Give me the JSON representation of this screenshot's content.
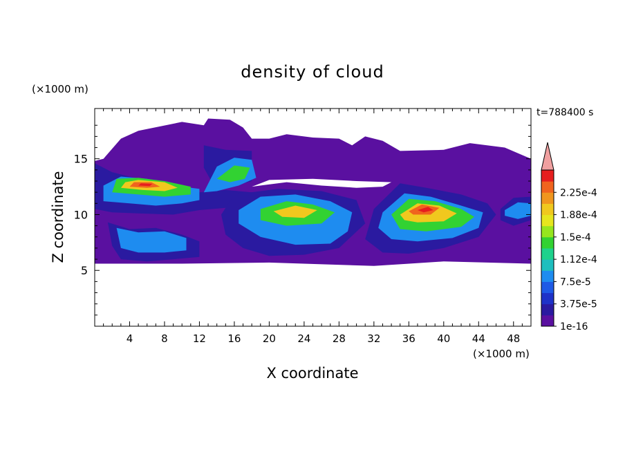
{
  "chart_data": {
    "type": "heatmap",
    "title": "density of cloud",
    "time_label": "t=788400 s",
    "xlabel": "X coordinate",
    "ylabel": "Z coordinate",
    "x_unit": "(×1000 m)",
    "y_unit": "(×1000 m)",
    "xlim": [
      0,
      50
    ],
    "ylim": [
      0,
      19.5
    ],
    "xticks": [
      4,
      8,
      12,
      16,
      20,
      24,
      28,
      32,
      36,
      40,
      44,
      48
    ],
    "yticks": [
      5,
      10,
      15
    ],
    "colorbar": {
      "levels": [
        "1e-16",
        "3.75e-5",
        "7.5e-5",
        "1.12e-4",
        "1.5e-4",
        "1.88e-4",
        "2.25e-4"
      ],
      "colors": [
        "#5a10a0",
        "#2a1aa0",
        "#1e32c8",
        "#1e5ae6",
        "#1e8cf0",
        "#1ebebe",
        "#1ed28c",
        "#32d232",
        "#96e61e",
        "#e6e61e",
        "#f0c81e",
        "#f0961e",
        "#f0641e",
        "#e61e1e"
      ],
      "extend_color": "#f0a0a0",
      "extend": "max"
    },
    "regions": [
      {
        "level": 1,
        "polygon": [
          [
            0,
            10.5
          ],
          [
            2,
            10.2
          ],
          [
            5,
            10.1
          ],
          [
            9,
            10.0
          ],
          [
            12,
            10.4
          ],
          [
            15,
            10.6
          ],
          [
            18,
            10.7
          ],
          [
            18,
            12.0
          ],
          [
            15,
            12.2
          ],
          [
            12,
            12.0
          ],
          [
            8,
            12.5
          ],
          [
            5,
            13.2
          ],
          [
            2,
            13.8
          ],
          [
            0,
            14.6
          ]
        ]
      },
      {
        "level": 1,
        "polygon": [
          [
            1.5,
            9.3
          ],
          [
            4,
            8.7
          ],
          [
            7,
            8.8
          ],
          [
            10,
            8.2
          ],
          [
            12,
            7.6
          ],
          [
            12,
            6.2
          ],
          [
            9,
            6.0
          ],
          [
            6,
            5.8
          ],
          [
            3,
            6.0
          ],
          [
            2,
            7.2
          ]
        ]
      },
      {
        "level": 1,
        "polygon": [
          [
            12.5,
            16.2
          ],
          [
            15,
            15.8
          ],
          [
            18,
            15.7
          ],
          [
            18,
            13.0
          ],
          [
            16,
            12.6
          ],
          [
            13.5,
            12.8
          ],
          [
            12.5,
            14.2
          ]
        ]
      },
      {
        "level": 1,
        "polygon": [
          [
            16,
            11.8
          ],
          [
            21,
            12.3
          ],
          [
            26,
            12.1
          ],
          [
            30,
            11.3
          ],
          [
            31,
            9.2
          ],
          [
            28,
            7.0
          ],
          [
            24,
            6.4
          ],
          [
            20,
            6.3
          ],
          [
            17,
            7.0
          ],
          [
            15,
            8.2
          ],
          [
            14.5,
            10.0
          ]
        ]
      },
      {
        "level": 1,
        "polygon": [
          [
            32,
            10.5
          ],
          [
            35,
            12.8
          ],
          [
            38,
            12.4
          ],
          [
            42,
            11.8
          ],
          [
            45,
            11.0
          ],
          [
            46,
            10.0
          ],
          [
            44,
            8.0
          ],
          [
            40,
            7.0
          ],
          [
            36,
            6.5
          ],
          [
            33,
            6.6
          ],
          [
            31,
            7.8
          ]
        ]
      },
      {
        "level": 1,
        "polygon": [
          [
            46.5,
            10.5
          ],
          [
            48,
            11.5
          ],
          [
            50,
            11.6
          ],
          [
            50,
            9.5
          ],
          [
            48,
            9.0
          ],
          [
            46.5,
            9.5
          ]
        ]
      },
      {
        "level": 4,
        "polygon": [
          [
            1,
            11.2
          ],
          [
            4,
            11.0
          ],
          [
            7,
            10.8
          ],
          [
            10,
            11.0
          ],
          [
            12,
            11.3
          ],
          [
            12,
            12.3
          ],
          [
            9,
            12.6
          ],
          [
            6,
            13.2
          ],
          [
            3,
            13.4
          ],
          [
            1,
            12.6
          ]
        ]
      },
      {
        "level": 4,
        "polygon": [
          [
            2.5,
            8.8
          ],
          [
            5,
            8.4
          ],
          [
            8,
            8.5
          ],
          [
            10.5,
            7.9
          ],
          [
            10.5,
            6.8
          ],
          [
            8,
            6.6
          ],
          [
            5,
            6.6
          ],
          [
            3,
            7.0
          ]
        ]
      },
      {
        "level": 4,
        "polygon": [
          [
            12.5,
            12.0
          ],
          [
            14,
            14.3
          ],
          [
            16,
            15.1
          ],
          [
            18,
            14.9
          ],
          [
            18.5,
            13.3
          ],
          [
            16.5,
            12.6
          ],
          [
            14,
            12.1
          ]
        ]
      },
      {
        "level": 4,
        "polygon": [
          [
            16.5,
            10.4
          ],
          [
            19,
            11.6
          ],
          [
            23,
            11.8
          ],
          [
            27,
            11.2
          ],
          [
            29.5,
            10.2
          ],
          [
            29,
            8.5
          ],
          [
            27,
            7.4
          ],
          [
            23,
            7.3
          ],
          [
            19,
            8.0
          ],
          [
            16.5,
            9.2
          ]
        ]
      },
      {
        "level": 4,
        "polygon": [
          [
            33,
            10.2
          ],
          [
            35.5,
            11.9
          ],
          [
            38.5,
            11.6
          ],
          [
            42,
            10.8
          ],
          [
            44.5,
            10.2
          ],
          [
            44,
            8.8
          ],
          [
            41,
            7.9
          ],
          [
            37,
            7.6
          ],
          [
            34,
            7.8
          ],
          [
            32.5,
            8.8
          ]
        ]
      },
      {
        "level": 4,
        "polygon": [
          [
            47,
            10.4
          ],
          [
            48.5,
            11.1
          ],
          [
            50,
            11.0
          ],
          [
            50,
            9.9
          ],
          [
            48.5,
            9.6
          ],
          [
            47,
            9.9
          ]
        ]
      },
      {
        "level": 7,
        "polygon": [
          [
            2,
            12.0
          ],
          [
            5,
            11.8
          ],
          [
            8,
            11.6
          ],
          [
            11,
            11.8
          ],
          [
            11,
            12.5
          ],
          [
            8,
            13.0
          ],
          [
            5,
            13.3
          ],
          [
            2.5,
            13.2
          ]
        ]
      },
      {
        "level": 7,
        "polygon": [
          [
            19,
            10.5
          ],
          [
            22,
            11.2
          ],
          [
            25,
            10.9
          ],
          [
            27.5,
            10.2
          ],
          [
            26,
            9.2
          ],
          [
            22,
            9.0
          ],
          [
            19,
            9.5
          ]
        ]
      },
      {
        "level": 7,
        "polygon": [
          [
            34,
            10.0
          ],
          [
            36,
            11.4
          ],
          [
            39,
            11.2
          ],
          [
            42,
            10.5
          ],
          [
            43.5,
            9.8
          ],
          [
            42,
            8.9
          ],
          [
            38,
            8.5
          ],
          [
            35,
            8.7
          ]
        ]
      },
      {
        "level": 7,
        "polygon": [
          [
            14,
            13.2
          ],
          [
            16,
            14.4
          ],
          [
            17.8,
            14.2
          ],
          [
            17.2,
            13.2
          ],
          [
            15.5,
            12.9
          ]
        ]
      },
      {
        "level": 10,
        "polygon": [
          [
            3,
            12.4
          ],
          [
            5.5,
            12.2
          ],
          [
            8,
            12.1
          ],
          [
            9.5,
            12.4
          ],
          [
            8,
            12.9
          ],
          [
            5,
            13.1
          ],
          [
            3.5,
            12.9
          ]
        ]
      },
      {
        "level": 10,
        "polygon": [
          [
            20.5,
            10.3
          ],
          [
            23,
            10.8
          ],
          [
            25.5,
            10.4
          ],
          [
            24,
            9.7
          ],
          [
            21.5,
            9.8
          ]
        ]
      },
      {
        "level": 10,
        "polygon": [
          [
            35,
            10.0
          ],
          [
            37,
            11.0
          ],
          [
            39.5,
            10.8
          ],
          [
            41.5,
            10.1
          ],
          [
            40,
            9.4
          ],
          [
            37,
            9.3
          ],
          [
            35.5,
            9.5
          ]
        ]
      },
      {
        "level": 12,
        "polygon": [
          [
            4,
            12.5
          ],
          [
            6,
            12.4
          ],
          [
            7.5,
            12.5
          ],
          [
            6.5,
            12.9
          ],
          [
            4.5,
            12.9
          ]
        ]
      },
      {
        "level": 12,
        "polygon": [
          [
            36,
            10.3
          ],
          [
            37.5,
            10.9
          ],
          [
            39.5,
            10.6
          ],
          [
            38.5,
            10.0
          ],
          [
            36.5,
            10.0
          ]
        ]
      },
      {
        "level": 13,
        "polygon": [
          [
            5,
            12.6
          ],
          [
            6.3,
            12.55
          ],
          [
            6.6,
            12.75
          ],
          [
            5.3,
            12.8
          ]
        ]
      },
      {
        "level": 13,
        "polygon": [
          [
            37,
            10.4
          ],
          [
            38.2,
            10.7
          ],
          [
            38.8,
            10.4
          ],
          [
            37.7,
            10.2
          ]
        ]
      }
    ]
  }
}
